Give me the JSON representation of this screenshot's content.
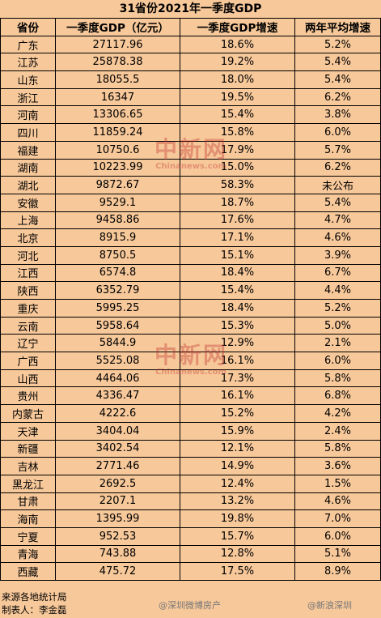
{
  "title": "31省份2021年一季度GDP",
  "headers": [
    "省份",
    "一季度GDP（亿元）",
    "一季度GDP增速",
    "两年平均增速"
  ],
  "rows": [
    [
      "广东",
      "27117.96",
      "18.6%",
      "5.2%"
    ],
    [
      "江苏",
      "25878.38",
      "19.2%",
      "5.4%"
    ],
    [
      "山东",
      "18055.5",
      "18.0%",
      "5.4%"
    ],
    [
      "浙江",
      "16347",
      "19.5%",
      "6.2%"
    ],
    [
      "河南",
      "13306.65",
      "15.4%",
      "3.8%"
    ],
    [
      "四川",
      "11859.24",
      "15.8%",
      "6.0%"
    ],
    [
      "福建",
      "10750.6",
      "17.9%",
      "5.7%"
    ],
    [
      "湖南",
      "10223.99",
      "15.0%",
      "6.2%"
    ],
    [
      "湖北",
      "9872.67",
      "58.3%",
      "未公布"
    ],
    [
      "安徽",
      "9529.1",
      "18.7%",
      "5.4%"
    ],
    [
      "上海",
      "9458.86",
      "17.6%",
      "4.7%"
    ],
    [
      "北京",
      "8915.9",
      "17.1%",
      "4.6%"
    ],
    [
      "河北",
      "8750.5",
      "15.1%",
      "3.9%"
    ],
    [
      "江西",
      "6574.8",
      "18.4%",
      "6.7%"
    ],
    [
      "陕西",
      "6352.79",
      "15.4%",
      "4.4%"
    ],
    [
      "重庆",
      "5995.25",
      "18.4%",
      "5.2%"
    ],
    [
      "云南",
      "5958.64",
      "15.3%",
      "5.0%"
    ],
    [
      "辽宁",
      "5844.9",
      "12.9%",
      "2.1%"
    ],
    [
      "广西",
      "5525.08",
      "16.1%",
      "6.0%"
    ],
    [
      "山西",
      "4464.06",
      "17.3%",
      "5.8%"
    ],
    [
      "贵州",
      "4336.47",
      "16.1%",
      "6.8%"
    ],
    [
      "内蒙古",
      "4222.6",
      "15.2%",
      "4.2%"
    ],
    [
      "天津",
      "3404.04",
      "15.9%",
      "2.4%"
    ],
    [
      "新疆",
      "3402.54",
      "12.1%",
      "5.8%"
    ],
    [
      "吉林",
      "2771.46",
      "14.9%",
      "3.6%"
    ],
    [
      "黑龙江",
      "2692.5",
      "12.4%",
      "1.5%"
    ],
    [
      "甘肃",
      "2207.1",
      "13.2%",
      "4.6%"
    ],
    [
      "海南",
      "1395.99",
      "19.8%",
      "7.0%"
    ],
    [
      "宁夏",
      "952.53",
      "15.7%",
      "6.0%"
    ],
    [
      "青海",
      "743.88",
      "12.8%",
      "5.1%"
    ],
    [
      "西藏",
      "475.72",
      "17.5%",
      "8.9%"
    ]
  ],
  "footer": {
    "source": "来源各地统计局",
    "author": "制表人：李金磊"
  },
  "watermarks": {
    "weibo_1": "@深圳微博房产",
    "weibo_2": "@新浪深圳",
    "logo_cn": "中新网",
    "logo_en": "Chinanews.com"
  }
}
